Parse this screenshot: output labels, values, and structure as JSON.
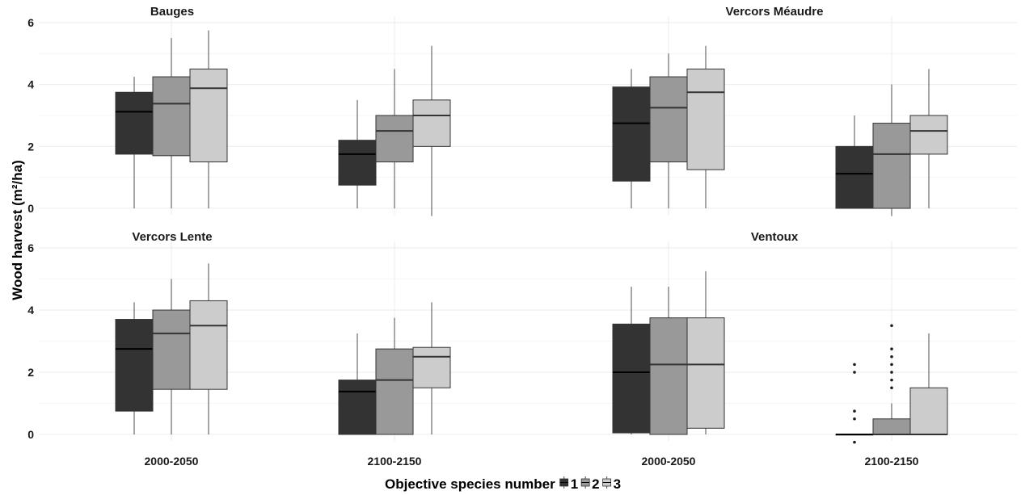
{
  "chart_data": {
    "type": "boxplot",
    "xlabel": "Objective species number",
    "ylabel": "Wood harvest (m²/ha)",
    "ylim": [
      0,
      6
    ],
    "yticks": [
      0,
      2,
      4,
      6
    ],
    "categories": [
      "2000-2050",
      "2100-2150"
    ],
    "grid": true,
    "legend": {
      "placement": "bottom",
      "entries": [
        {
          "label": "1",
          "color": "#333333"
        },
        {
          "label": "2",
          "color": "#999999"
        },
        {
          "label": "3",
          "color": "#cccccc"
        }
      ]
    },
    "panels": [
      {
        "title": "Bauges",
        "groups": [
          {
            "category": "2000-2050",
            "boxes": [
              {
                "series": "1",
                "whisker_low": 0,
                "q1": 1.75,
                "median": 3.12,
                "q3": 3.75,
                "whisker_high": 4.25,
                "outliers": []
              },
              {
                "series": "2",
                "whisker_low": 0,
                "q1": 1.7,
                "median": 3.38,
                "q3": 4.25,
                "whisker_high": 5.5,
                "outliers": []
              },
              {
                "series": "3",
                "whisker_low": 0,
                "q1": 1.5,
                "median": 3.88,
                "q3": 4.5,
                "whisker_high": 5.75,
                "outliers": []
              }
            ]
          },
          {
            "category": "2100-2150",
            "boxes": [
              {
                "series": "1",
                "whisker_low": 0,
                "q1": 0.75,
                "median": 1.75,
                "q3": 2.2,
                "whisker_high": 3.5,
                "outliers": []
              },
              {
                "series": "2",
                "whisker_low": 0,
                "q1": 1.5,
                "median": 2.5,
                "q3": 3.0,
                "whisker_high": 4.5,
                "outliers": []
              },
              {
                "series": "3",
                "whisker_low": -0.25,
                "q1": 2.0,
                "median": 3.0,
                "q3": 3.5,
                "whisker_high": 5.25,
                "outliers": []
              }
            ]
          }
        ]
      },
      {
        "title": "Vercors Méaudre",
        "groups": [
          {
            "category": "2000-2050",
            "boxes": [
              {
                "series": "1",
                "whisker_low": 0,
                "q1": 0.88,
                "median": 2.75,
                "q3": 3.92,
                "whisker_high": 4.5,
                "outliers": []
              },
              {
                "series": "2",
                "whisker_low": 0,
                "q1": 1.5,
                "median": 3.25,
                "q3": 4.25,
                "whisker_high": 5.0,
                "outliers": []
              },
              {
                "series": "3",
                "whisker_low": 0,
                "q1": 1.25,
                "median": 3.75,
                "q3": 4.5,
                "whisker_high": 5.25,
                "outliers": []
              }
            ]
          },
          {
            "category": "2100-2150",
            "boxes": [
              {
                "series": "1",
                "whisker_low": 0,
                "q1": 0,
                "median": 1.12,
                "q3": 2.0,
                "whisker_high": 3.0,
                "outliers": []
              },
              {
                "series": "2",
                "whisker_low": -0.25,
                "q1": 0,
                "median": 1.75,
                "q3": 2.75,
                "whisker_high": 4.0,
                "outliers": []
              },
              {
                "series": "3",
                "whisker_low": 0,
                "q1": 1.75,
                "median": 2.5,
                "q3": 3.0,
                "whisker_high": 4.5,
                "outliers": []
              }
            ]
          }
        ]
      },
      {
        "title": "Vercors Lente",
        "groups": [
          {
            "category": "2000-2050",
            "boxes": [
              {
                "series": "1",
                "whisker_low": 0,
                "q1": 0.75,
                "median": 2.75,
                "q3": 3.7,
                "whisker_high": 4.25,
                "outliers": []
              },
              {
                "series": "2",
                "whisker_low": 0,
                "q1": 1.45,
                "median": 3.25,
                "q3": 4.0,
                "whisker_high": 5.0,
                "outliers": []
              },
              {
                "series": "3",
                "whisker_low": 0,
                "q1": 1.45,
                "median": 3.5,
                "q3": 4.3,
                "whisker_high": 5.5,
                "outliers": []
              }
            ]
          },
          {
            "category": "2100-2150",
            "boxes": [
              {
                "series": "1",
                "whisker_low": 0,
                "q1": 0,
                "median": 1.38,
                "q3": 1.75,
                "whisker_high": 3.25,
                "outliers": []
              },
              {
                "series": "2",
                "whisker_low": 0,
                "q1": 0,
                "median": 1.75,
                "q3": 2.75,
                "whisker_high": 3.75,
                "outliers": []
              },
              {
                "series": "3",
                "whisker_low": 0,
                "q1": 1.5,
                "median": 2.5,
                "q3": 2.8,
                "whisker_high": 4.25,
                "outliers": []
              }
            ]
          }
        ]
      },
      {
        "title": "Ventoux",
        "groups": [
          {
            "category": "2000-2050",
            "boxes": [
              {
                "series": "1",
                "whisker_low": 0,
                "q1": 0.05,
                "median": 2.0,
                "q3": 3.55,
                "whisker_high": 4.75,
                "outliers": []
              },
              {
                "series": "2",
                "whisker_low": 0,
                "q1": 0,
                "median": 2.25,
                "q3": 3.75,
                "whisker_high": 4.75,
                "outliers": []
              },
              {
                "series": "3",
                "whisker_low": 0,
                "q1": 0.2,
                "median": 2.25,
                "q3": 3.75,
                "whisker_high": 5.25,
                "outliers": []
              }
            ]
          },
          {
            "category": "2100-2150",
            "boxes": [
              {
                "series": "1",
                "whisker_low": 0,
                "q1": 0,
                "median": 0,
                "q3": 0,
                "whisker_high": 0,
                "outliers": [
                  2.25,
                  2.0,
                  0.75,
                  0.5,
                  -0.25
                ]
              },
              {
                "series": "2",
                "whisker_low": 0,
                "q1": 0,
                "median": 0,
                "q3": 0.5,
                "whisker_high": 1.0,
                "outliers": [
                  3.5,
                  2.75,
                  2.5,
                  2.25,
                  2.0,
                  1.75,
                  1.5
                ]
              },
              {
                "series": "3",
                "whisker_low": 0,
                "q1": 0,
                "median": 0,
                "q3": 1.5,
                "whisker_high": 3.25,
                "outliers": []
              }
            ]
          }
        ]
      }
    ]
  }
}
